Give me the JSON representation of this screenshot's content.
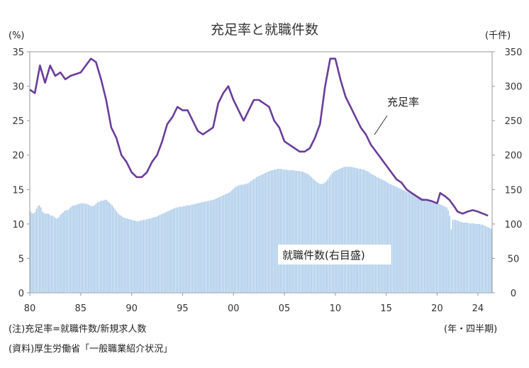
{
  "chart_data": {
    "type": "bar+line",
    "title": "充足率と就職件数",
    "left_axis": {
      "unit": "(%)",
      "ylim": [
        0,
        35
      ],
      "ticks": [
        0,
        5,
        10,
        15,
        20,
        25,
        30,
        35
      ]
    },
    "right_axis": {
      "unit": "(千件)",
      "ylim": [
        0,
        350
      ],
      "ticks": [
        0,
        50,
        100,
        150,
        200,
        250,
        300,
        350
      ]
    },
    "x_axis": {
      "unit": "(年・四半期)",
      "start_year": 1980,
      "tick_labels": [
        "80",
        "85",
        "90",
        "95",
        "00",
        "05",
        "10",
        "15",
        "20",
        "24"
      ],
      "tick_years": [
        1980,
        1985,
        1990,
        1995,
        2000,
        2005,
        2010,
        2015,
        2020,
        2024
      ]
    },
    "colors": {
      "line": "#6a3d9a",
      "bar": "#9ec3e6",
      "bar_edge": "#7fa9d2",
      "axis": "#999999"
    },
    "series": [
      {
        "name": "充足率",
        "type": "line",
        "axis": "left",
        "points": [
          [
            1980,
            29.5
          ],
          [
            1980.5,
            29
          ],
          [
            1981,
            33
          ],
          [
            1981.5,
            30.5
          ],
          [
            1982,
            33
          ],
          [
            1982.5,
            31.5
          ],
          [
            1983,
            32
          ],
          [
            1983.5,
            31
          ],
          [
            1984,
            31.5
          ],
          [
            1985,
            32
          ],
          [
            1985.5,
            33
          ],
          [
            1986,
            34
          ],
          [
            1986.5,
            33.5
          ],
          [
            1987,
            31
          ],
          [
            1987.5,
            28
          ],
          [
            1988,
            24
          ],
          [
            1988.5,
            22.5
          ],
          [
            1989,
            20
          ],
          [
            1989.5,
            19
          ],
          [
            1990,
            17.5
          ],
          [
            1990.5,
            16.8
          ],
          [
            1991,
            16.8
          ],
          [
            1991.5,
            17.5
          ],
          [
            1992,
            19
          ],
          [
            1992.5,
            20
          ],
          [
            1993,
            22
          ],
          [
            1993.5,
            24.5
          ],
          [
            1994,
            25.5
          ],
          [
            1994.5,
            27
          ],
          [
            1995,
            26.5
          ],
          [
            1995.5,
            26.5
          ],
          [
            1996,
            25
          ],
          [
            1996.5,
            23.5
          ],
          [
            1997,
            23
          ],
          [
            1997.5,
            23.5
          ],
          [
            1998,
            24
          ],
          [
            1998.5,
            27.5
          ],
          [
            1999,
            29
          ],
          [
            1999.5,
            30
          ],
          [
            2000,
            28
          ],
          [
            2000.5,
            26.5
          ],
          [
            2001,
            25
          ],
          [
            2001.5,
            26.5
          ],
          [
            2002,
            28
          ],
          [
            2002.5,
            28
          ],
          [
            2003,
            27.5
          ],
          [
            2003.5,
            27
          ],
          [
            2004,
            25
          ],
          [
            2004.5,
            24
          ],
          [
            2005,
            22
          ],
          [
            2005.5,
            21.5
          ],
          [
            2006,
            21
          ],
          [
            2006.5,
            20.5
          ],
          [
            2007,
            20.5
          ],
          [
            2007.5,
            21
          ],
          [
            2008,
            22.5
          ],
          [
            2008.5,
            24.5
          ],
          [
            2009,
            30
          ],
          [
            2009.5,
            34
          ],
          [
            2010,
            34
          ],
          [
            2010.5,
            31
          ],
          [
            2011,
            28.5
          ],
          [
            2011.5,
            27
          ],
          [
            2012,
            25.5
          ],
          [
            2012.5,
            24
          ],
          [
            2013,
            23
          ],
          [
            2013.5,
            21.5
          ],
          [
            2014,
            20.5
          ],
          [
            2014.5,
            19.5
          ],
          [
            2015,
            18.5
          ],
          [
            2015.5,
            17.5
          ],
          [
            2016,
            16.5
          ],
          [
            2016.5,
            16
          ],
          [
            2017,
            15
          ],
          [
            2017.5,
            14.5
          ],
          [
            2018,
            14
          ],
          [
            2018.5,
            13.5
          ],
          [
            2019,
            13.5
          ],
          [
            2019.5,
            13.3
          ],
          [
            2020,
            13
          ],
          [
            2020.3,
            14.5
          ],
          [
            2020.8,
            14
          ],
          [
            2021.2,
            13.5
          ],
          [
            2021.7,
            12.5
          ],
          [
            2022,
            11.8
          ],
          [
            2022.5,
            11.5
          ],
          [
            2023,
            11.8
          ],
          [
            2023.5,
            12
          ],
          [
            2024,
            11.8
          ],
          [
            2024.5,
            11.5
          ],
          [
            2025,
            11.2
          ]
        ]
      },
      {
        "name": "就職件数",
        "type": "bar",
        "axis": "right",
        "values": [
          118,
          116,
          115,
          117,
          122,
          126,
          127,
          124,
          118,
          116,
          115,
          115,
          115,
          113,
          112,
          112,
          110,
          108,
          108,
          110,
          113,
          115,
          117,
          119,
          120,
          120,
          122,
          124,
          126,
          127,
          127,
          128,
          129,
          129,
          130,
          130,
          130,
          129,
          129,
          128,
          127,
          126,
          126,
          127,
          129,
          131,
          132,
          133,
          134,
          134,
          135,
          135,
          133,
          131,
          129,
          127,
          124,
          121,
          118,
          115,
          113,
          112,
          110,
          109,
          108,
          108,
          107,
          107,
          106,
          105,
          105,
          104,
          104,
          104,
          105,
          105,
          106,
          106,
          107,
          107,
          108,
          108,
          109,
          110,
          110,
          111,
          112,
          113,
          114,
          115,
          116,
          117,
          118,
          119,
          120,
          121,
          122,
          123,
          124,
          124,
          125,
          125,
          125,
          126,
          126,
          127,
          127,
          127,
          128,
          128,
          129,
          129,
          130,
          130,
          131,
          131,
          132,
          132,
          133,
          133,
          134,
          134,
          135,
          135,
          136,
          137,
          138,
          139,
          140,
          141,
          142,
          143,
          144,
          145,
          146,
          148,
          150,
          152,
          154,
          155,
          156,
          157,
          157,
          157,
          158,
          158,
          159,
          160,
          162,
          163,
          165,
          166,
          168,
          169,
          170,
          171,
          172,
          173,
          174,
          175,
          176,
          177,
          178,
          178,
          179,
          179,
          180,
          180,
          180,
          180,
          179,
          179,
          179,
          178,
          178,
          178,
          178,
          178,
          177,
          177,
          177,
          177,
          176,
          176,
          175,
          174,
          173,
          172,
          170,
          168,
          166,
          164,
          162,
          160,
          159,
          158,
          158,
          159,
          160,
          162,
          165,
          168,
          171,
          174,
          176,
          177,
          178,
          179,
          180,
          181,
          182,
          183,
          183,
          183,
          183,
          183,
          183,
          182,
          182,
          181,
          181,
          180,
          180,
          179,
          179,
          178,
          177,
          176,
          175,
          173,
          172,
          171,
          170,
          168,
          167,
          166,
          165,
          164,
          163,
          162,
          160,
          159,
          158,
          157,
          156,
          155,
          154,
          153,
          152,
          151,
          150,
          149,
          148,
          147,
          146,
          145,
          145,
          144,
          143,
          142,
          141,
          140,
          139,
          138,
          137,
          136,
          135,
          134,
          134,
          133,
          133,
          132,
          132,
          131,
          130,
          129,
          128,
          127,
          126,
          125,
          124,
          120,
          112,
          92,
          106,
          106,
          106,
          105,
          104,
          103,
          103,
          102,
          102,
          102,
          102,
          101,
          101,
          101,
          101,
          100,
          100,
          100,
          100,
          99,
          99,
          98,
          97,
          96,
          95,
          94,
          93
        ]
      }
    ],
    "annotations": [
      {
        "text": "充足率",
        "kind": "line-label"
      },
      {
        "text": "就職件数(右目盛)",
        "kind": "bar-label"
      }
    ],
    "notes": [
      "(注)充足率=就職件数/新規求人数",
      "(資料)厚生労働省「一般職業紹介状況」"
    ]
  }
}
